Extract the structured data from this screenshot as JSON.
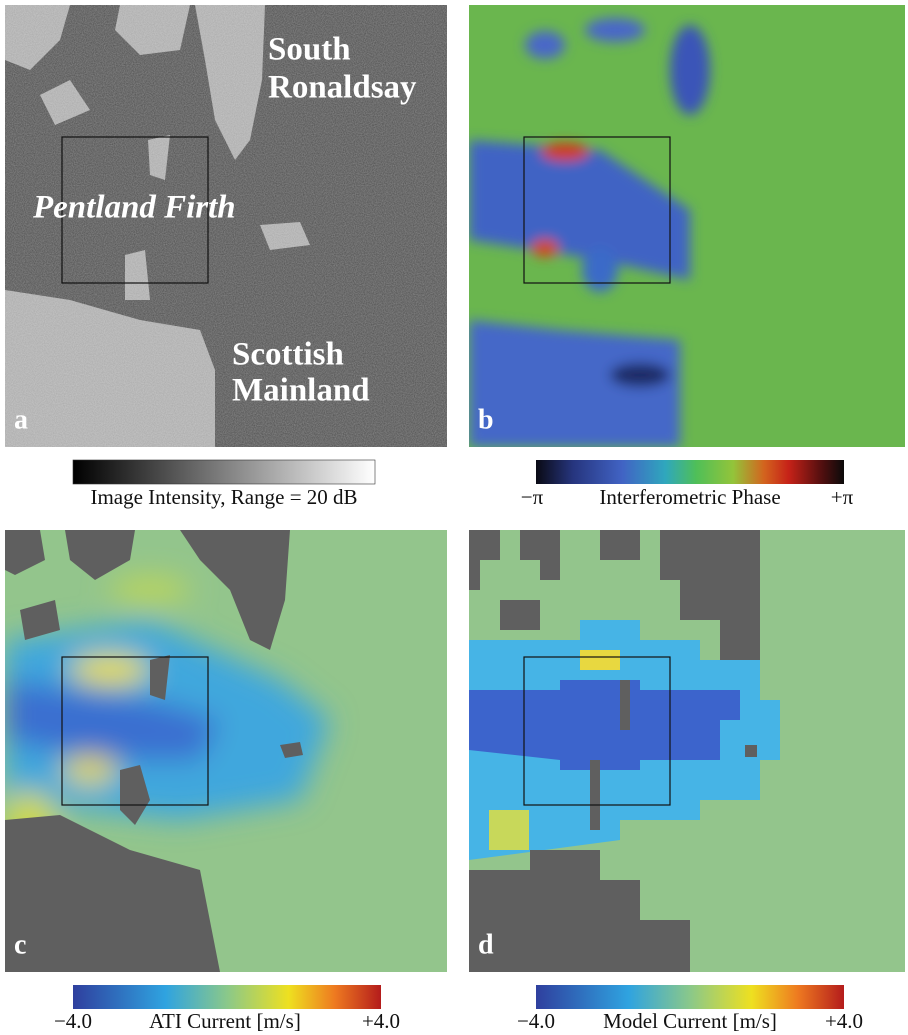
{
  "panels": [
    {
      "label": "a",
      "annotations": [
        {
          "lines": [
            "South",
            "Ronaldsay"
          ]
        },
        {
          "lines": [
            "Pentland Firth"
          ]
        },
        {
          "lines": [
            "Scottish",
            "Mainland"
          ]
        }
      ],
      "colorbar": {
        "title": "Image Intensity, Range = 20 dB"
      }
    },
    {
      "label": "b",
      "colorbar": {
        "min_label": "−π",
        "title": "Interferometric Phase",
        "max_label": "+π"
      }
    },
    {
      "label": "c",
      "colorbar": {
        "min_label": "−4.0",
        "title": "ATI Current [m/s]",
        "max_label": "+4.0"
      }
    },
    {
      "label": "d",
      "colorbar": {
        "min_label": "−4.0",
        "title": "Model Current [m/s]",
        "max_label": "+4.0"
      }
    }
  ]
}
